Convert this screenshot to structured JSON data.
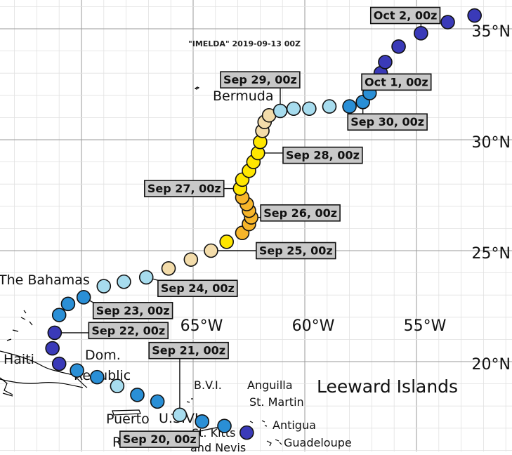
{
  "title": "\"IMELDA\" 2019-09-13 00Z",
  "axes": {
    "lon_labels": [
      "65°W",
      "60°W",
      "55°W"
    ],
    "lat_labels": [
      "35°N",
      "30°N",
      "25°N",
      "20°N"
    ]
  },
  "places": {
    "bermuda": "Bermuda",
    "bahamas": "The Bahamas",
    "haiti": "Haiti",
    "dom_line1": "Dom.",
    "dom_line2": "Republic",
    "puerto_line1": "Puerto",
    "puerto_line2": "Rico",
    "usvi": "U.S.VI",
    "bvi": "B.V.I.",
    "anguilla": "Anguilla",
    "st_martin": "St. Martin",
    "antigua": "Antigua",
    "st_kitts_line1": "St. Kitts",
    "st_kitts_line2": "and Nevis",
    "guadeloupe": "Guadeloupe",
    "leeward": "Leeward Islands"
  },
  "legend_colors": {
    "dark_blue": "#3a3ab8",
    "blue": "#2a8fd6",
    "light_blue": "#a7dcee",
    "cream": "#f3dcaa",
    "yellow": "#ffe600",
    "orange": "#f7b52a"
  },
  "track": [
    {
      "lon": -62.6,
      "lat": 16.8,
      "color": "#3a3ab8"
    },
    {
      "lon": -63.6,
      "lat": 17.1,
      "color": "#2a8fd6"
    },
    {
      "lon": -64.6,
      "lat": 17.3,
      "color": "#2a8fd6"
    },
    {
      "lon": -65.6,
      "lat": 17.6,
      "color": "#a7dcee"
    },
    {
      "lon": -66.6,
      "lat": 18.2,
      "color": "#2a8fd6"
    },
    {
      "lon": -67.5,
      "lat": 18.5,
      "color": "#2a8fd6"
    },
    {
      "lon": -68.4,
      "lat": 18.9,
      "color": "#a7dcee"
    },
    {
      "lon": -69.3,
      "lat": 19.3,
      "color": "#2a8fd6"
    },
    {
      "lon": -70.2,
      "lat": 19.6,
      "color": "#2a8fd6"
    },
    {
      "lon": -71.0,
      "lat": 19.9,
      "color": "#3a3ab8"
    },
    {
      "lon": -71.3,
      "lat": 20.6,
      "color": "#3a3ab8"
    },
    {
      "lon": -71.2,
      "lat": 21.3,
      "color": "#3a3ab8"
    },
    {
      "lon": -71.0,
      "lat": 22.1,
      "color": "#2a8fd6"
    },
    {
      "lon": -70.6,
      "lat": 22.6,
      "color": "#2a8fd6"
    },
    {
      "lon": -69.9,
      "lat": 22.9,
      "color": "#2a8fd6"
    },
    {
      "lon": -69.0,
      "lat": 23.4,
      "color": "#a7dcee"
    },
    {
      "lon": -68.1,
      "lat": 23.6,
      "color": "#a7dcee"
    },
    {
      "lon": -67.1,
      "lat": 23.8,
      "color": "#a7dcee"
    },
    {
      "lon": -66.1,
      "lat": 24.2,
      "color": "#f3dcaa"
    },
    {
      "lon": -65.1,
      "lat": 24.6,
      "color": "#f3dcaa"
    },
    {
      "lon": -64.2,
      "lat": 25.0,
      "color": "#f3dcaa"
    },
    {
      "lon": -63.5,
      "lat": 25.4,
      "color": "#ffe600"
    },
    {
      "lon": -62.8,
      "lat": 25.8,
      "color": "#f7b52a"
    },
    {
      "lon": -62.5,
      "lat": 26.2,
      "color": "#f7b52a"
    },
    {
      "lon": -62.4,
      "lat": 26.5,
      "color": "#f7b52a"
    },
    {
      "lon": -62.5,
      "lat": 26.8,
      "color": "#f7b52a"
    },
    {
      "lon": -62.6,
      "lat": 27.1,
      "color": "#f7b52a"
    },
    {
      "lon": -62.8,
      "lat": 27.4,
      "color": "#f7b52a"
    },
    {
      "lon": -62.9,
      "lat": 27.8,
      "color": "#ffe600"
    },
    {
      "lon": -62.8,
      "lat": 28.2,
      "color": "#ffe600"
    },
    {
      "lon": -62.5,
      "lat": 28.6,
      "color": "#ffe600"
    },
    {
      "lon": -62.3,
      "lat": 29.0,
      "color": "#ffe600"
    },
    {
      "lon": -62.1,
      "lat": 29.4,
      "color": "#ffe600"
    },
    {
      "lon": -62.0,
      "lat": 29.9,
      "color": "#ffe600"
    },
    {
      "lon": -61.9,
      "lat": 30.4,
      "color": "#f3dcaa"
    },
    {
      "lon": -61.8,
      "lat": 30.8,
      "color": "#f3dcaa"
    },
    {
      "lon": -61.6,
      "lat": 31.1,
      "color": "#f3dcaa"
    },
    {
      "lon": -61.1,
      "lat": 31.3,
      "color": "#a7dcee"
    },
    {
      "lon": -60.5,
      "lat": 31.4,
      "color": "#a7dcee"
    },
    {
      "lon": -59.8,
      "lat": 31.4,
      "color": "#a7dcee"
    },
    {
      "lon": -58.9,
      "lat": 31.5,
      "color": "#a7dcee"
    },
    {
      "lon": -58.0,
      "lat": 31.5,
      "color": "#2a8fd6"
    },
    {
      "lon": -57.4,
      "lat": 31.7,
      "color": "#2a8fd6"
    },
    {
      "lon": -57.1,
      "lat": 32.1,
      "color": "#2a8fd6"
    },
    {
      "lon": -56.8,
      "lat": 32.6,
      "color": "#3a3ab8"
    },
    {
      "lon": -56.6,
      "lat": 33.0,
      "color": "#3a3ab8"
    },
    {
      "lon": -56.4,
      "lat": 33.5,
      "color": "#3a3ab8"
    },
    {
      "lon": -55.8,
      "lat": 34.2,
      "color": "#3a3ab8"
    },
    {
      "lon": -54.8,
      "lat": 34.8,
      "color": "#3a3ab8"
    },
    {
      "lon": -53.6,
      "lat": 35.3,
      "color": "#3a3ab8"
    },
    {
      "lon": -52.4,
      "lat": 35.6,
      "color": "#3a3ab8"
    }
  ],
  "date_labels": [
    {
      "text": "Oct 2, 00z",
      "lon": -55.5,
      "lat": 35.6,
      "point": 48
    },
    {
      "text": "Oct 1, 00z",
      "lon": -55.9,
      "lat": 32.6,
      "point": 45
    },
    {
      "text": "Sep 30, 00z",
      "lon": -56.3,
      "lat": 30.8,
      "point": 42
    },
    {
      "text": "Sep 29, 00z",
      "lon": -62.0,
      "lat": 32.7,
      "point": 37
    },
    {
      "text": "Sep 28, 00z",
      "lon": -59.2,
      "lat": 29.3,
      "point": 32
    },
    {
      "text": "Sep 27, 00z",
      "lon": -65.4,
      "lat": 27.8,
      "point": 28
    },
    {
      "text": "Sep 26, 00z",
      "lon": -60.2,
      "lat": 26.7,
      "point": 24
    },
    {
      "text": "Sep 25, 00z",
      "lon": -60.4,
      "lat": 25.0,
      "point": 20
    },
    {
      "text": "Sep 24, 00z",
      "lon": -64.8,
      "lat": 23.3,
      "point": 17
    },
    {
      "text": "Sep 23, 00z",
      "lon": -67.7,
      "lat": 22.3,
      "point": 14
    },
    {
      "text": "Sep 22, 00z",
      "lon": -67.9,
      "lat": 21.4,
      "point": 11
    },
    {
      "text": "Sep 21, 00z",
      "lon": -65.2,
      "lat": 20.5,
      "point": 3
    },
    {
      "text": "Sep 20, 00z",
      "lon": -66.5,
      "lat": 16.5,
      "point": 1
    }
  ]
}
